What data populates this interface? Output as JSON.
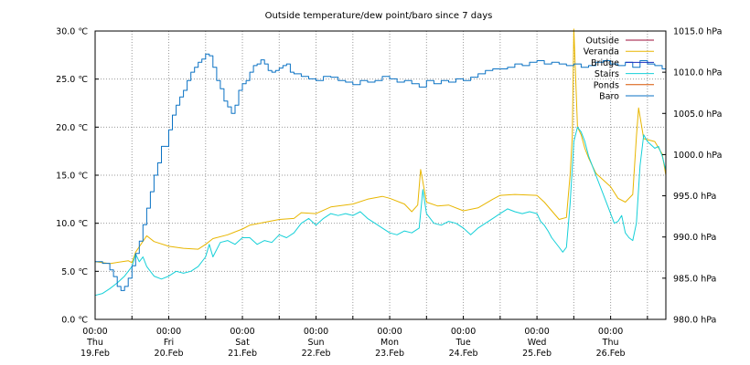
{
  "chart_data": {
    "type": "line",
    "title": "Outside temperature/dew point/baro since 7 days",
    "x_days": [
      {
        "time": "00:00",
        "day": "Thu",
        "date": "19.Feb"
      },
      {
        "time": "00:00",
        "day": "Fri",
        "date": "20.Feb"
      },
      {
        "time": "00:00",
        "day": "Sat",
        "date": "21.Feb"
      },
      {
        "time": "00:00",
        "day": "Sun",
        "date": "22.Feb"
      },
      {
        "time": "00:00",
        "day": "Mon",
        "date": "23.Feb"
      },
      {
        "time": "00:00",
        "day": "Tue",
        "date": "24.Feb"
      },
      {
        "time": "00:00",
        "day": "Wed",
        "date": "25.Feb"
      },
      {
        "time": "00:00",
        "day": "Thu",
        "date": "26.Feb"
      }
    ],
    "xlim_days": [
      0,
      7.75
    ],
    "y_left": {
      "unit": "C",
      "ylim": [
        0,
        30
      ],
      "ticks": [
        "0.0 ℃",
        "5.0 ℃",
        "10.0 ℃",
        "15.0 ℃",
        "20.0 ℃",
        "25.0 ℃",
        "30.0 ℃"
      ]
    },
    "y_right": {
      "unit": "hPa",
      "ylim": [
        980,
        1015
      ],
      "ticks": [
        "980.0 hPa",
        "985.0 hPa",
        "990.0 hPa",
        "995.0 hPa",
        "1000.0 hPa",
        "1005.0 hPa",
        "1010.0 hPa",
        "1015.0 hPa"
      ]
    },
    "grid": true,
    "legend_position": "top-right",
    "legend": [
      {
        "name": "Outside",
        "color": "#9e0e3a"
      },
      {
        "name": "Veranda",
        "color": "#e8b600"
      },
      {
        "name": "Bridge",
        "color": "#1a2fbf"
      },
      {
        "name": "Stairs",
        "color": "#15d0d8"
      },
      {
        "name": "Ponds",
        "color": "#d75300"
      },
      {
        "name": "Baro",
        "color": "#0a72c4"
      }
    ],
    "series": [
      {
        "name": "Veranda",
        "axis": "left",
        "color": "#e8b600",
        "x": [
          0,
          0.2,
          0.45,
          0.5,
          0.55,
          0.7,
          0.8,
          1.0,
          1.2,
          1.4,
          1.5,
          1.6,
          1.8,
          2.0,
          2.1,
          2.3,
          2.5,
          2.7,
          2.8,
          3.0,
          3.2,
          3.5,
          3.7,
          3.9,
          4.0,
          4.2,
          4.3,
          4.38,
          4.42,
          4.5,
          4.65,
          4.8,
          5.0,
          5.2,
          5.4,
          5.5,
          5.7,
          6.0,
          6.1,
          6.2,
          6.3,
          6.4,
          6.45,
          6.48,
          6.5,
          6.55,
          6.6,
          6.65,
          6.7,
          6.8,
          7.0,
          7.1,
          7.2,
          7.3,
          7.35,
          7.38,
          7.45,
          7.6,
          7.7,
          7.75
        ],
        "values": [
          6.0,
          5.8,
          6.1,
          5.9,
          7.0,
          8.7,
          8.1,
          7.6,
          7.4,
          7.3,
          7.8,
          8.4,
          8.8,
          9.4,
          9.8,
          10.1,
          10.4,
          10.5,
          11.1,
          11.0,
          11.7,
          12.0,
          12.5,
          12.8,
          12.6,
          12.0,
          11.2,
          11.9,
          15.6,
          12.2,
          11.8,
          11.9,
          11.3,
          11.6,
          12.5,
          12.9,
          13.0,
          12.9,
          12.2,
          11.3,
          10.4,
          10.6,
          15.0,
          19.0,
          30.2,
          20.0,
          19.2,
          17.8,
          16.8,
          15.2,
          13.8,
          12.6,
          12.2,
          13.0,
          19.0,
          22.0,
          18.8,
          18.5,
          17.2,
          15.0
        ]
      },
      {
        "name": "Stairs",
        "axis": "left",
        "color": "#15d0d8",
        "x": [
          0,
          0.1,
          0.2,
          0.3,
          0.4,
          0.5,
          0.55,
          0.6,
          0.65,
          0.7,
          0.8,
          0.9,
          1.0,
          1.1,
          1.2,
          1.3,
          1.4,
          1.5,
          1.55,
          1.6,
          1.7,
          1.8,
          1.9,
          2.0,
          2.1,
          2.2,
          2.3,
          2.4,
          2.5,
          2.6,
          2.7,
          2.8,
          2.9,
          3.0,
          3.1,
          3.2,
          3.3,
          3.4,
          3.5,
          3.6,
          3.7,
          3.8,
          3.9,
          4.0,
          4.1,
          4.2,
          4.3,
          4.4,
          4.45,
          4.5,
          4.6,
          4.7,
          4.8,
          4.9,
          5.0,
          5.1,
          5.2,
          5.3,
          5.4,
          5.5,
          5.6,
          5.7,
          5.8,
          5.9,
          6.0,
          6.05,
          6.1,
          6.15,
          6.2,
          6.3,
          6.35,
          6.4,
          6.45,
          6.5,
          6.55,
          6.6,
          6.65,
          6.7,
          6.8,
          6.9,
          7.0,
          7.05,
          7.1,
          7.15,
          7.2,
          7.25,
          7.3,
          7.35,
          7.4,
          7.45,
          7.5,
          7.6,
          7.65,
          7.7,
          7.75
        ],
        "values": [
          2.5,
          2.7,
          3.2,
          3.8,
          4.5,
          5.5,
          6.8,
          6.0,
          6.5,
          5.5,
          4.5,
          4.2,
          4.5,
          5.0,
          4.8,
          5.0,
          5.5,
          6.5,
          7.8,
          6.5,
          8.0,
          8.2,
          7.8,
          8.5,
          8.5,
          7.8,
          8.2,
          8.0,
          8.8,
          8.5,
          9.0,
          10.0,
          10.5,
          9.8,
          10.5,
          11.0,
          10.8,
          11.0,
          10.8,
          11.2,
          10.5,
          10.0,
          9.5,
          9.0,
          8.8,
          9.2,
          9.0,
          9.5,
          13.5,
          11.0,
          10.0,
          9.8,
          10.2,
          10.0,
          9.5,
          8.8,
          9.5,
          10.0,
          10.5,
          11.0,
          11.5,
          11.2,
          11.0,
          11.2,
          11.0,
          10.2,
          9.8,
          9.2,
          8.5,
          7.5,
          7.0,
          7.5,
          12.0,
          18.5,
          20.0,
          19.5,
          18.5,
          17.0,
          15.0,
          13.0,
          11.0,
          10.0,
          10.2,
          10.8,
          9.0,
          8.5,
          8.2,
          10.0,
          16.0,
          19.2,
          18.5,
          17.8,
          18.0,
          17.0,
          15.5
        ]
      },
      {
        "name": "Baro",
        "axis": "right",
        "color": "#0a72c4",
        "x": [
          0,
          0.1,
          0.2,
          0.25,
          0.3,
          0.35,
          0.4,
          0.45,
          0.5,
          0.55,
          0.6,
          0.65,
          0.7,
          0.75,
          0.8,
          0.85,
          0.9,
          1.0,
          1.05,
          1.1,
          1.15,
          1.2,
          1.25,
          1.3,
          1.35,
          1.4,
          1.45,
          1.5,
          1.55,
          1.6,
          1.65,
          1.7,
          1.75,
          1.8,
          1.85,
          1.9,
          1.95,
          2.0,
          2.05,
          2.1,
          2.15,
          2.2,
          2.25,
          2.3,
          2.35,
          2.4,
          2.45,
          2.5,
          2.55,
          2.6,
          2.65,
          2.7,
          2.8,
          2.9,
          3.0,
          3.1,
          3.2,
          3.3,
          3.4,
          3.5,
          3.6,
          3.7,
          3.8,
          3.9,
          4.0,
          4.1,
          4.2,
          4.3,
          4.4,
          4.5,
          4.6,
          4.7,
          4.8,
          4.9,
          5.0,
          5.1,
          5.2,
          5.3,
          5.4,
          5.5,
          5.6,
          5.7,
          5.8,
          5.9,
          6.0,
          6.1,
          6.2,
          6.3,
          6.4,
          6.5,
          6.6,
          6.7,
          6.8,
          6.9,
          7.0,
          7.1,
          7.2,
          7.3,
          7.4,
          7.5,
          7.6,
          7.7,
          7.75
        ],
        "values": [
          987.0,
          986.8,
          986.0,
          985.2,
          984.0,
          983.5,
          984.0,
          985.0,
          986.5,
          988.0,
          989.5,
          991.5,
          993.5,
          995.5,
          997.5,
          999.0,
          1001.0,
          1003.0,
          1004.8,
          1006.0,
          1007.0,
          1007.8,
          1009.0,
          1010.0,
          1010.6,
          1011.2,
          1011.6,
          1012.2,
          1012.0,
          1010.6,
          1009.0,
          1008.0,
          1006.5,
          1005.8,
          1005.0,
          1006.0,
          1007.8,
          1008.6,
          1009.0,
          1010.0,
          1010.8,
          1011.0,
          1011.5,
          1011.0,
          1010.2,
          1010.0,
          1010.2,
          1010.5,
          1010.8,
          1011.0,
          1010.0,
          1009.8,
          1009.5,
          1009.2,
          1009.0,
          1009.5,
          1009.4,
          1009.0,
          1008.8,
          1008.5,
          1009.0,
          1008.8,
          1009.0,
          1009.5,
          1009.2,
          1008.8,
          1009.0,
          1008.6,
          1008.2,
          1009.0,
          1008.6,
          1009.0,
          1008.8,
          1009.2,
          1009.0,
          1009.4,
          1009.8,
          1010.2,
          1010.4,
          1010.4,
          1010.6,
          1011.0,
          1010.8,
          1011.2,
          1011.4,
          1011.0,
          1011.2,
          1011.0,
          1010.8,
          1011.0,
          1010.6,
          1010.8,
          1011.2,
          1011.4,
          1011.0,
          1010.8,
          1011.2,
          1010.6,
          1011.4,
          1011.0,
          1010.8,
          1010.4,
          1010.2
        ]
      }
    ]
  }
}
